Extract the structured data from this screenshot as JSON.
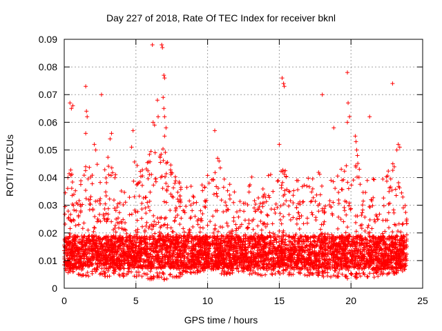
{
  "chart_data": {
    "type": "scatter",
    "title": "Day 227 of 2018, Rate Of TEC Index for receiver bknl",
    "xlabel": "GPS time / hours",
    "ylabel": "ROTI / TECUs",
    "xlim": [
      0,
      25
    ],
    "ylim": [
      0,
      0.09
    ],
    "xticks": [
      "0",
      "5",
      "10",
      "15",
      "20",
      "25"
    ],
    "yticks": [
      "0",
      "0.01",
      "0.02",
      "0.03",
      "0.04",
      "0.05",
      "0.06",
      "0.07",
      "0.08",
      "0.09"
    ],
    "grid": true,
    "marker": "+",
    "color": "#ff0000",
    "points": [
      [
        0.4,
        0.067
      ],
      [
        0.5,
        0.065
      ],
      [
        0.6,
        0.066
      ],
      [
        1.5,
        0.073
      ],
      [
        1.55,
        0.064
      ],
      [
        1.6,
        0.062
      ],
      [
        1.5,
        0.056
      ],
      [
        2.6,
        0.07
      ],
      [
        2.1,
        0.052
      ],
      [
        2.2,
        0.05
      ],
      [
        3.3,
        0.056
      ],
      [
        3.2,
        0.054
      ],
      [
        4.8,
        0.057
      ],
      [
        4.7,
        0.051
      ],
      [
        6.15,
        0.088
      ],
      [
        6.5,
        0.068
      ],
      [
        6.55,
        0.062
      ],
      [
        6.2,
        0.06
      ],
      [
        6.3,
        0.059
      ],
      [
        6.8,
        0.088
      ],
      [
        6.85,
        0.087
      ],
      [
        6.95,
        0.077
      ],
      [
        7.0,
        0.076
      ],
      [
        6.9,
        0.069
      ],
      [
        6.95,
        0.065
      ],
      [
        7.0,
        0.062
      ],
      [
        7.1,
        0.058
      ],
      [
        7.0,
        0.055
      ],
      [
        10.5,
        0.057
      ],
      [
        10.7,
        0.047
      ],
      [
        10.8,
        0.046
      ],
      [
        15.2,
        0.076
      ],
      [
        15.3,
        0.074
      ],
      [
        15.35,
        0.073
      ],
      [
        15.0,
        0.052
      ],
      [
        18.0,
        0.07
      ],
      [
        18.8,
        0.058
      ],
      [
        19.75,
        0.078
      ],
      [
        19.8,
        0.067
      ],
      [
        19.9,
        0.062
      ],
      [
        19.75,
        0.06
      ],
      [
        20.3,
        0.055
      ],
      [
        20.35,
        0.053
      ],
      [
        20.4,
        0.05
      ],
      [
        20.45,
        0.048
      ],
      [
        21.3,
        0.062
      ],
      [
        22.9,
        0.074
      ],
      [
        23.3,
        0.052
      ],
      [
        23.4,
        0.051
      ],
      [
        23.2,
        0.05
      ]
    ],
    "density_bands": [
      {
        "x": 0.0,
        "low": 0.005,
        "high": 0.045
      },
      {
        "x": 0.5,
        "low": 0.006,
        "high": 0.043
      },
      {
        "x": 1.0,
        "low": 0.005,
        "high": 0.042
      },
      {
        "x": 1.5,
        "low": 0.004,
        "high": 0.044
      },
      {
        "x": 2.0,
        "low": 0.005,
        "high": 0.046
      },
      {
        "x": 2.5,
        "low": 0.005,
        "high": 0.045
      },
      {
        "x": 3.0,
        "low": 0.004,
        "high": 0.05
      },
      {
        "x": 3.5,
        "low": 0.005,
        "high": 0.042
      },
      {
        "x": 4.0,
        "low": 0.004,
        "high": 0.038
      },
      {
        "x": 4.5,
        "low": 0.005,
        "high": 0.041
      },
      {
        "x": 5.0,
        "low": 0.004,
        "high": 0.048
      },
      {
        "x": 5.5,
        "low": 0.004,
        "high": 0.044
      },
      {
        "x": 6.0,
        "low": 0.003,
        "high": 0.05
      },
      {
        "x": 6.5,
        "low": 0.004,
        "high": 0.052
      },
      {
        "x": 7.0,
        "low": 0.003,
        "high": 0.051
      },
      {
        "x": 7.5,
        "low": 0.004,
        "high": 0.044
      },
      {
        "x": 8.0,
        "low": 0.004,
        "high": 0.039
      },
      {
        "x": 8.5,
        "low": 0.005,
        "high": 0.037
      },
      {
        "x": 9.0,
        "low": 0.005,
        "high": 0.04
      },
      {
        "x": 9.5,
        "low": 0.006,
        "high": 0.039
      },
      {
        "x": 10.0,
        "low": 0.006,
        "high": 0.041
      },
      {
        "x": 10.5,
        "low": 0.007,
        "high": 0.044
      },
      {
        "x": 11.0,
        "low": 0.005,
        "high": 0.045
      },
      {
        "x": 11.5,
        "low": 0.005,
        "high": 0.038
      },
      {
        "x": 12.0,
        "low": 0.006,
        "high": 0.034
      },
      {
        "x": 12.5,
        "low": 0.006,
        "high": 0.036
      },
      {
        "x": 13.0,
        "low": 0.005,
        "high": 0.042
      },
      {
        "x": 13.5,
        "low": 0.005,
        "high": 0.038
      },
      {
        "x": 14.0,
        "low": 0.004,
        "high": 0.04
      },
      {
        "x": 14.5,
        "low": 0.005,
        "high": 0.042
      },
      {
        "x": 15.0,
        "low": 0.004,
        "high": 0.045
      },
      {
        "x": 15.5,
        "low": 0.004,
        "high": 0.043
      },
      {
        "x": 16.0,
        "low": 0.005,
        "high": 0.041
      },
      {
        "x": 16.5,
        "low": 0.005,
        "high": 0.043
      },
      {
        "x": 17.0,
        "low": 0.004,
        "high": 0.04
      },
      {
        "x": 17.5,
        "low": 0.005,
        "high": 0.041
      },
      {
        "x": 18.0,
        "low": 0.004,
        "high": 0.043
      },
      {
        "x": 18.5,
        "low": 0.004,
        "high": 0.04
      },
      {
        "x": 19.0,
        "low": 0.004,
        "high": 0.042
      },
      {
        "x": 19.5,
        "low": 0.004,
        "high": 0.045
      },
      {
        "x": 20.0,
        "low": 0.003,
        "high": 0.044
      },
      {
        "x": 20.5,
        "low": 0.004,
        "high": 0.046
      },
      {
        "x": 21.0,
        "low": 0.004,
        "high": 0.04
      },
      {
        "x": 21.5,
        "low": 0.004,
        "high": 0.041
      },
      {
        "x": 22.0,
        "low": 0.004,
        "high": 0.04
      },
      {
        "x": 22.5,
        "low": 0.005,
        "high": 0.042
      },
      {
        "x": 23.0,
        "low": 0.005,
        "high": 0.046
      },
      {
        "x": 23.5,
        "low": 0.006,
        "high": 0.036
      },
      {
        "x": 23.9,
        "low": 0.007,
        "high": 0.03
      }
    ]
  }
}
